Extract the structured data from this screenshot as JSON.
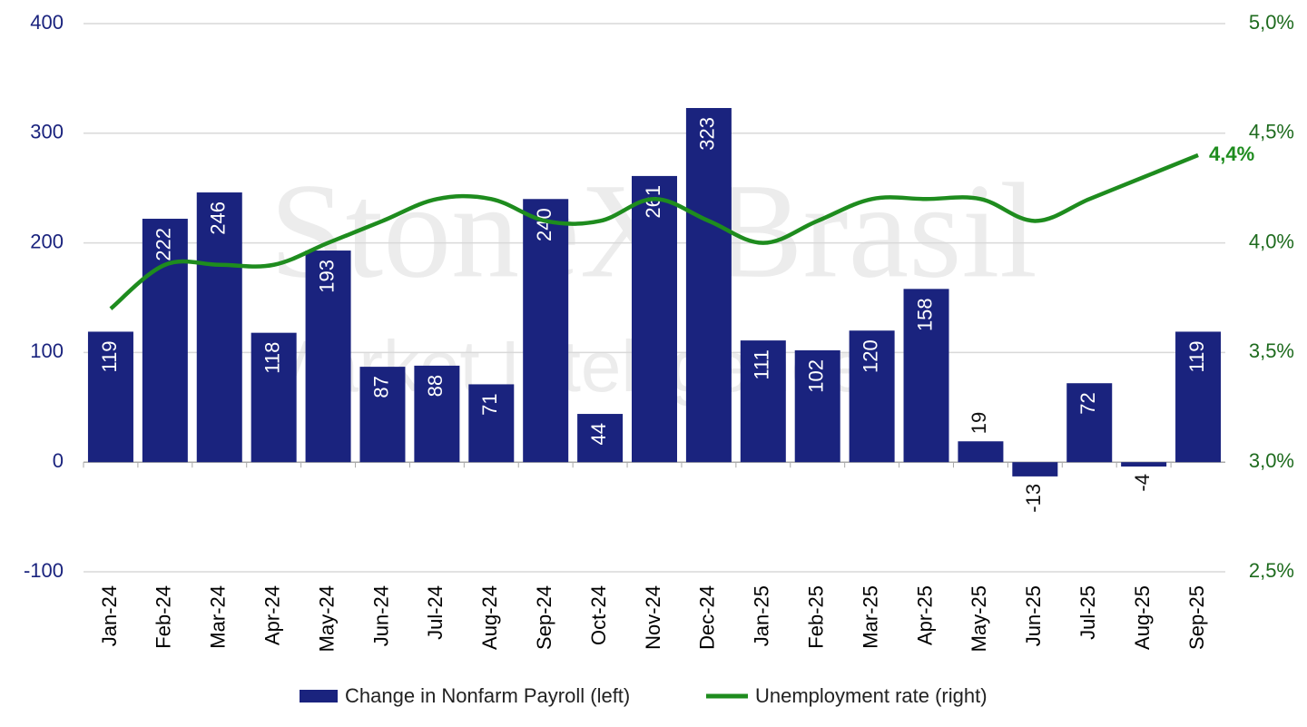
{
  "chart_data": {
    "type": "bar_line",
    "watermark": "StoneX Brasil",
    "watermark_sub": "Market Intelligence",
    "categories": [
      "Jan-24",
      "Feb-24",
      "Mar-24",
      "Apr-24",
      "May-24",
      "Jun-24",
      "Jul-24",
      "Aug-24",
      "Sep-24",
      "Oct-24",
      "Nov-24",
      "Dec-24",
      "Jan-25",
      "Feb-25",
      "Mar-25",
      "Apr-25",
      "May-25",
      "Jun-25",
      "Jul-25",
      "Aug-25",
      "Sep-25"
    ],
    "series": [
      {
        "name": "Change in Nonfarm Payroll (left)",
        "type": "bar",
        "color": "#1a237e",
        "values": [
          119,
          222,
          246,
          118,
          193,
          87,
          88,
          71,
          240,
          44,
          261,
          323,
          111,
          102,
          120,
          158,
          19,
          -13,
          72,
          -4,
          119
        ]
      },
      {
        "name": "Unemployment rate (right)",
        "type": "line",
        "axis": "y2",
        "color": "#1e8c1e",
        "values": [
          3.7,
          3.9,
          3.9,
          3.9,
          4.0,
          4.1,
          4.2,
          4.2,
          4.1,
          4.1,
          4.2,
          4.1,
          4.0,
          4.1,
          4.2,
          4.2,
          4.2,
          4.1,
          4.2,
          4.3,
          4.4
        ],
        "value_labels": [
          null,
          null,
          null,
          null,
          null,
          null,
          null,
          null,
          null,
          null,
          null,
          null,
          null,
          null,
          null,
          null,
          null,
          null,
          null,
          null,
          "4,4%"
        ]
      }
    ],
    "ylim": [
      -100,
      400
    ],
    "yticks": [
      -100,
      0,
      100,
      200,
      300,
      400
    ],
    "y2lim": [
      2.5,
      5.0
    ],
    "y2ticks": [
      {
        "value": 2.5,
        "label": "2,5%"
      },
      {
        "value": 3.0,
        "label": "3,0%"
      },
      {
        "value": 3.5,
        "label": "3,5%"
      },
      {
        "value": 4.0,
        "label": "4,0%"
      },
      {
        "value": 4.5,
        "label": "4,5%"
      },
      {
        "value": 5.0,
        "label": "5,0%"
      }
    ],
    "grid": true,
    "legend": "bottom"
  }
}
